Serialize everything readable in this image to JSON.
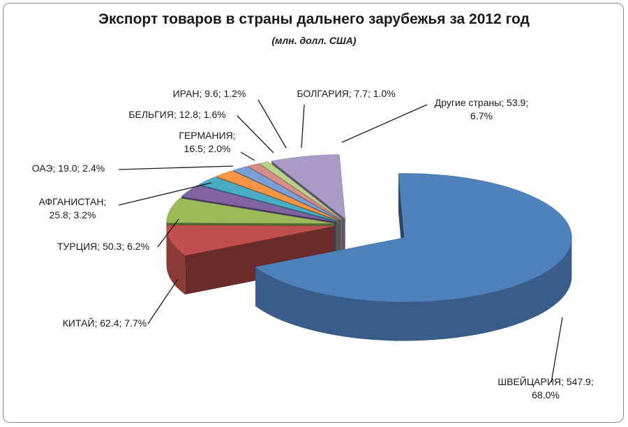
{
  "chart_data": {
    "type": "pie",
    "style": "3d-exploded",
    "title": "Экспорт товаров в страны дальнего зарубежья за 2012 год",
    "subtitle": "(млн. долл. США)",
    "legend": "none",
    "slices": [
      {
        "name": "ШВЕЙЦАРИЯ",
        "value": 547.9,
        "percent": "68.0%",
        "label": [
          "ШВЕЙЦАРИЯ; 547.9;",
          "68.0%"
        ],
        "color": "#4f81bd"
      },
      {
        "name": "КИТАЙ",
        "value": 62.4,
        "percent": "7.7%",
        "label": [
          "КИТАЙ; 62.4; 7.7%"
        ],
        "color": "#c0504d"
      },
      {
        "name": "ТУРЦИЯ",
        "value": 50.3,
        "percent": "6.2%",
        "label": [
          "ТУРЦИЯ; 50.3; 6.2%"
        ],
        "color": "#9bbb59"
      },
      {
        "name": "АФГАНИСТАН",
        "value": 25.8,
        "percent": "3.2%",
        "label": [
          "АФГАНИСТАН;",
          "25.8; 3.2%"
        ],
        "color": "#8064a2"
      },
      {
        "name": "ОАЭ",
        "value": 19.0,
        "percent": "2.4%",
        "label": [
          "ОАЭ; 19.0; 2.4%"
        ],
        "color": "#4bacc6"
      },
      {
        "name": "ГЕРМАНИЯ",
        "value": 16.5,
        "percent": "2.0%",
        "label": [
          "ГЕРМАНИЯ;",
          "16.5; 2.0%"
        ],
        "color": "#f79646"
      },
      {
        "name": "БЕЛЬГИЯ",
        "value": 12.8,
        "percent": "1.6%",
        "label": [
          "БЕЛЬГИЯ; 12.8; 1.6%"
        ],
        "color": "#7b9fd1"
      },
      {
        "name": "ИРАН",
        "value": 9.6,
        "percent": "1.2%",
        "label": [
          "ИРАН; 9.6; 1.2%"
        ],
        "color": "#d88c8a"
      },
      {
        "name": "БОЛГАРИЯ",
        "value": 7.7,
        "percent": "1.0%",
        "label": [
          "БОЛГАРИЯ; 7.7; 1.0%"
        ],
        "color": "#b9d18c"
      },
      {
        "name": "Другие страны",
        "value": 53.9,
        "percent": "6.7%",
        "label": [
          "Другие страны; 53.9;",
          "6.7%"
        ],
        "color": "#aa9bc6"
      }
    ]
  }
}
